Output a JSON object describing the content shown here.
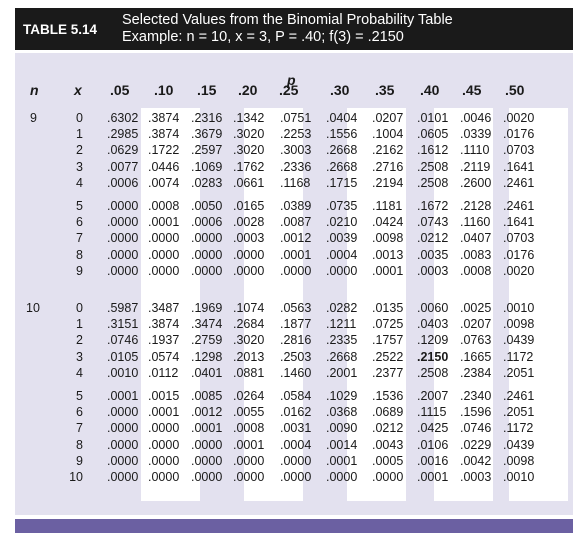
{
  "table": {
    "label": "TABLE 5.14",
    "caption_line1": "Selected Values from the Binomial Probability Table",
    "caption_line2": "Example: n = 10, x = 3, P = .40; f(3) = .2150"
  },
  "headers": {
    "p_label": "p",
    "n_label": "n",
    "x_label": "x",
    "p_values": [
      ".05",
      ".10",
      ".15",
      ".20",
      ".25",
      ".30",
      ".35",
      ".40",
      ".45",
      ".50"
    ]
  },
  "colors": {
    "header_bg": "#1a1a1a",
    "panel_bg": "#e3e1ef",
    "column_highlight": "#ffffff",
    "bottom_bar": "#6b60a2"
  },
  "highlight": {
    "n": "10",
    "x": "3",
    "p": ".40",
    "value": ".2150"
  },
  "blocks": [
    {
      "n": "9",
      "rows": [
        {
          "x": "0",
          "values": [
            ".6302",
            ".3874",
            ".2316",
            ".1342",
            ".0751",
            ".0404",
            ".0207",
            ".0101",
            ".0046",
            ".0020"
          ]
        },
        {
          "x": "1",
          "values": [
            ".2985",
            ".3874",
            ".3679",
            ".3020",
            ".2253",
            ".1556",
            ".1004",
            ".0605",
            ".0339",
            ".0176"
          ]
        },
        {
          "x": "2",
          "values": [
            ".0629",
            ".1722",
            ".2597",
            ".3020",
            ".3003",
            ".2668",
            ".2162",
            ".1612",
            ".1110",
            ".0703"
          ]
        },
        {
          "x": "3",
          "values": [
            ".0077",
            ".0446",
            ".1069",
            ".1762",
            ".2336",
            ".2668",
            ".2716",
            ".2508",
            ".2119",
            ".1641"
          ]
        },
        {
          "x": "4",
          "values": [
            ".0006",
            ".0074",
            ".0283",
            ".0661",
            ".1168",
            ".1715",
            ".2194",
            ".2508",
            ".2600",
            ".2461"
          ]
        },
        {
          "x": "5",
          "values": [
            ".0000",
            ".0008",
            ".0050",
            ".0165",
            ".0389",
            ".0735",
            ".1181",
            ".1672",
            ".2128",
            ".2461"
          ]
        },
        {
          "x": "6",
          "values": [
            ".0000",
            ".0001",
            ".0006",
            ".0028",
            ".0087",
            ".0210",
            ".0424",
            ".0743",
            ".1160",
            ".1641"
          ]
        },
        {
          "x": "7",
          "values": [
            ".0000",
            ".0000",
            ".0000",
            ".0003",
            ".0012",
            ".0039",
            ".0098",
            ".0212",
            ".0407",
            ".0703"
          ]
        },
        {
          "x": "8",
          "values": [
            ".0000",
            ".0000",
            ".0000",
            ".0000",
            ".0001",
            ".0004",
            ".0013",
            ".0035",
            ".0083",
            ".0176"
          ]
        },
        {
          "x": "9",
          "values": [
            ".0000",
            ".0000",
            ".0000",
            ".0000",
            ".0000",
            ".0000",
            ".0001",
            ".0003",
            ".0008",
            ".0020"
          ]
        }
      ]
    },
    {
      "n": "10",
      "rows": [
        {
          "x": "0",
          "values": [
            ".5987",
            ".3487",
            ".1969",
            ".1074",
            ".0563",
            ".0282",
            ".0135",
            ".0060",
            ".0025",
            ".0010"
          ]
        },
        {
          "x": "1",
          "values": [
            ".3151",
            ".3874",
            ".3474",
            ".2684",
            ".1877",
            ".1211",
            ".0725",
            ".0403",
            ".0207",
            ".0098"
          ]
        },
        {
          "x": "2",
          "values": [
            ".0746",
            ".1937",
            ".2759",
            ".3020",
            ".2816",
            ".2335",
            ".1757",
            ".1209",
            ".0763",
            ".0439"
          ]
        },
        {
          "x": "3",
          "values": [
            ".0105",
            ".0574",
            ".1298",
            ".2013",
            ".2503",
            ".2668",
            ".2522",
            ".2150",
            ".1665",
            ".1172"
          ]
        },
        {
          "x": "4",
          "values": [
            ".0010",
            ".0112",
            ".0401",
            ".0881",
            ".1460",
            ".2001",
            ".2377",
            ".2508",
            ".2384",
            ".2051"
          ]
        },
        {
          "x": "5",
          "values": [
            ".0001",
            ".0015",
            ".0085",
            ".0264",
            ".0584",
            ".1029",
            ".1536",
            ".2007",
            ".2340",
            ".2461"
          ]
        },
        {
          "x": "6",
          "values": [
            ".0000",
            ".0001",
            ".0012",
            ".0055",
            ".0162",
            ".0368",
            ".0689",
            ".1115",
            ".1596",
            ".2051"
          ]
        },
        {
          "x": "7",
          "values": [
            ".0000",
            ".0000",
            ".0001",
            ".0008",
            ".0031",
            ".0090",
            ".0212",
            ".0425",
            ".0746",
            ".1172"
          ]
        },
        {
          "x": "8",
          "values": [
            ".0000",
            ".0000",
            ".0000",
            ".0001",
            ".0004",
            ".0014",
            ".0043",
            ".0106",
            ".0229",
            ".0439"
          ]
        },
        {
          "x": "9",
          "values": [
            ".0000",
            ".0000",
            ".0000",
            ".0000",
            ".0000",
            ".0001",
            ".0005",
            ".0016",
            ".0042",
            ".0098"
          ]
        },
        {
          "x": "10",
          "values": [
            ".0000",
            ".0000",
            ".0000",
            ".0000",
            ".0000",
            ".0000",
            ".0000",
            ".0001",
            ".0003",
            ".0010"
          ]
        }
      ]
    }
  ]
}
